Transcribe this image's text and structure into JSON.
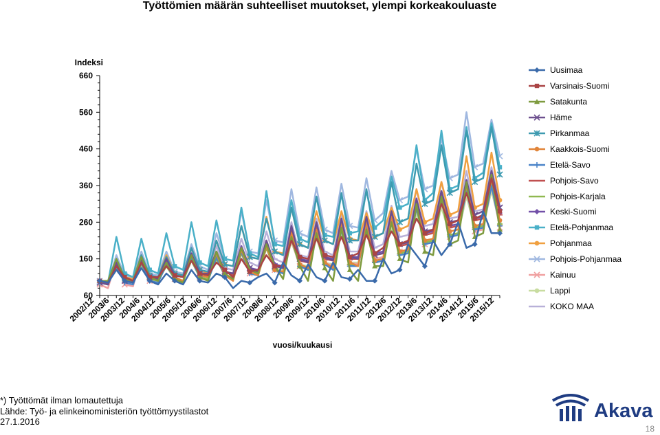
{
  "title": "Työttömien määrän suhteelliset muutokset, ylempi korkeakouluaste",
  "footnote": {
    "line1": "*) Työttömät ilman lomautettuja",
    "line2": "Lähde: Työ- ja elinkeinoministeriön työttömyystilastot",
    "date": "27.1.2016"
  },
  "logo": {
    "text": "Akava"
  },
  "page_number": "18",
  "chart_data": {
    "type": "line",
    "title": "Työttömien määrän suhteelliset muutokset, ylempi korkeakouluaste",
    "ylabel": "Indeksi",
    "xlabel": "vuosi/kuukausi",
    "ylim": [
      60,
      660
    ],
    "yticks": [
      60,
      160,
      260,
      360,
      460,
      560,
      660
    ],
    "x_tick_labels": [
      "2002/12",
      "2003/6",
      "2003/12",
      "2004/6",
      "2004/12",
      "2005/6",
      "2005/12",
      "2006/6",
      "2006/12",
      "2007/6",
      "2007/12",
      "2008/6",
      "2008/12",
      "2009/6",
      "2009/12",
      "2010/6",
      "2010/12",
      "2011/6",
      "2011/12",
      "2012/6",
      "2012/12",
      "2013/6",
      "2013/12",
      "2014/6",
      "2014/12",
      "2015/6",
      "2015/12"
    ],
    "grid": false,
    "legend_position": "right",
    "series": [
      {
        "name": "Uusimaa",
        "color": "#3a6aaa",
        "marker": "diamond",
        "values": [
          100,
          95,
          130,
          100,
          95,
          135,
          100,
          90,
          120,
          100,
          90,
          130,
          100,
          95,
          120,
          110,
          80,
          100,
          95,
          110,
          120,
          95,
          150,
          115,
          100,
          145,
          110,
          100,
          150,
          110,
          105,
          130,
          100,
          100,
          160,
          120,
          130,
          200,
          170,
          140,
          210,
          170,
          200,
          260,
          190,
          200,
          290,
          230,
          230
        ]
      },
      {
        "name": "Varsinais-Suomi",
        "color": "#aa4445",
        "marker": "square",
        "values": [
          100,
          95,
          140,
          110,
          100,
          150,
          110,
          110,
          140,
          115,
          110,
          155,
          120,
          115,
          150,
          130,
          110,
          160,
          125,
          130,
          170,
          140,
          140,
          210,
          165,
          160,
          215,
          170,
          165,
          220,
          165,
          175,
          225,
          175,
          190,
          235,
          200,
          210,
          270,
          230,
          240,
          310,
          255,
          265,
          340,
          270,
          280,
          380,
          290
        ]
      },
      {
        "name": "Satakunta",
        "color": "#7e9b3f",
        "marker": "triangle",
        "values": [
          100,
          100,
          160,
          105,
          100,
          165,
          110,
          100,
          150,
          105,
          95,
          170,
          110,
          100,
          180,
          120,
          105,
          190,
          130,
          120,
          200,
          140,
          105,
          220,
          140,
          100,
          230,
          135,
          100,
          245,
          130,
          100,
          240,
          140,
          140,
          260,
          160,
          150,
          310,
          180,
          170,
          330,
          200,
          210,
          370,
          220,
          230,
          390,
          240
        ]
      },
      {
        "name": "Häme",
        "color": "#6c4f8e",
        "marker": "x",
        "values": [
          95,
          90,
          150,
          100,
          95,
          160,
          110,
          105,
          160,
          115,
          110,
          175,
          120,
          120,
          180,
          125,
          120,
          190,
          135,
          125,
          210,
          140,
          135,
          250,
          160,
          150,
          260,
          165,
          155,
          270,
          165,
          160,
          275,
          170,
          175,
          290,
          200,
          205,
          320,
          235,
          240,
          345,
          260,
          265,
          375,
          280,
          290,
          400,
          300
        ]
      },
      {
        "name": "Pirkanmaa",
        "color": "#3d9ab0",
        "marker": "star",
        "values": [
          95,
          90,
          160,
          110,
          100,
          170,
          115,
          110,
          165,
          120,
          115,
          190,
          130,
          125,
          210,
          145,
          140,
          250,
          165,
          160,
          270,
          180,
          170,
          300,
          200,
          190,
          330,
          210,
          200,
          340,
          210,
          210,
          350,
          220,
          230,
          370,
          260,
          270,
          420,
          310,
          320,
          470,
          340,
          350,
          510,
          370,
          380,
          520,
          390
        ]
      },
      {
        "name": "Kaakkois-Suomi",
        "color": "#e1853a",
        "marker": "circle",
        "values": [
          100,
          95,
          150,
          105,
          100,
          160,
          110,
          105,
          150,
          110,
          100,
          170,
          115,
          110,
          175,
          115,
          100,
          185,
          125,
          115,
          195,
          130,
          125,
          230,
          145,
          135,
          240,
          150,
          135,
          260,
          150,
          140,
          260,
          155,
          160,
          275,
          180,
          185,
          315,
          210,
          215,
          330,
          235,
          240,
          360,
          250,
          255,
          380,
          265
        ]
      },
      {
        "name": "Etelä-Savo",
        "color": "#4a84c8",
        "marker": "plus",
        "values": [
          100,
          90,
          140,
          95,
          90,
          150,
          100,
          95,
          145,
          105,
          100,
          160,
          110,
          100,
          165,
          115,
          105,
          180,
          120,
          115,
          195,
          130,
          120,
          220,
          140,
          130,
          230,
          145,
          130,
          240,
          140,
          140,
          250,
          150,
          155,
          260,
          170,
          175,
          300,
          200,
          205,
          320,
          220,
          225,
          350,
          240,
          245,
          360,
          250
        ]
      },
      {
        "name": "Pohjois-Savo",
        "color": "#c05050",
        "marker": "dash",
        "values": [
          100,
          95,
          145,
          105,
          100,
          155,
          110,
          105,
          150,
          115,
          110,
          165,
          120,
          115,
          175,
          125,
          115,
          190,
          130,
          125,
          205,
          140,
          135,
          235,
          155,
          150,
          245,
          160,
          155,
          260,
          160,
          160,
          265,
          170,
          175,
          280,
          195,
          200,
          320,
          225,
          230,
          340,
          245,
          250,
          370,
          265,
          270,
          385,
          280
        ]
      },
      {
        "name": "Pohjois-Karjala",
        "color": "#90b850",
        "marker": "dash",
        "values": [
          100,
          95,
          135,
          100,
          95,
          145,
          105,
          100,
          140,
          105,
          100,
          155,
          110,
          105,
          160,
          115,
          105,
          175,
          120,
          115,
          190,
          130,
          120,
          215,
          140,
          130,
          225,
          145,
          135,
          240,
          145,
          140,
          245,
          150,
          155,
          260,
          175,
          180,
          300,
          205,
          210,
          320,
          225,
          230,
          350,
          245,
          250,
          365,
          255
        ]
      },
      {
        "name": "Keski-Suomi",
        "color": "#7250a8",
        "marker": "diamond",
        "values": [
          100,
          95,
          150,
          105,
          100,
          160,
          110,
          105,
          155,
          115,
          110,
          170,
          120,
          115,
          180,
          125,
          120,
          195,
          135,
          130,
          210,
          145,
          140,
          240,
          160,
          155,
          250,
          165,
          160,
          265,
          165,
          165,
          270,
          175,
          180,
          285,
          200,
          205,
          325,
          230,
          235,
          345,
          250,
          255,
          375,
          270,
          275,
          390,
          285
        ]
      },
      {
        "name": "Etelä-Pohjanmaa",
        "color": "#4ab0c8",
        "marker": "square",
        "values": [
          100,
          95,
          220,
          120,
          110,
          215,
          130,
          120,
          230,
          140,
          130,
          260,
          150,
          140,
          265,
          160,
          155,
          300,
          175,
          165,
          345,
          200,
          195,
          320,
          215,
          205,
          330,
          225,
          220,
          335,
          230,
          235,
          345,
          245,
          265,
          385,
          300,
          310,
          470,
          320,
          340,
          510,
          350,
          360,
          520,
          380,
          395,
          530,
          410
        ]
      },
      {
        "name": "Pohjanmaa",
        "color": "#f0a040",
        "marker": "circle",
        "values": [
          100,
          95,
          160,
          110,
          105,
          170,
          115,
          110,
          170,
          120,
          115,
          190,
          130,
          120,
          210,
          145,
          140,
          250,
          165,
          160,
          275,
          180,
          175,
          300,
          200,
          190,
          290,
          210,
          200,
          290,
          215,
          210,
          285,
          220,
          230,
          300,
          240,
          250,
          350,
          260,
          270,
          370,
          280,
          290,
          440,
          300,
          310,
          450,
          320
        ]
      },
      {
        "name": "Pohjois-Pohjanmaa",
        "color": "#a0b8e0",
        "marker": "x",
        "values": [
          100,
          95,
          170,
          115,
          110,
          180,
          120,
          115,
          180,
          125,
          120,
          200,
          140,
          130,
          230,
          160,
          155,
          290,
          180,
          175,
          320,
          210,
          205,
          350,
          230,
          220,
          355,
          240,
          230,
          365,
          250,
          245,
          380,
          265,
          285,
          400,
          320,
          330,
          460,
          350,
          360,
          490,
          380,
          390,
          560,
          410,
          420,
          540,
          440
        ]
      },
      {
        "name": "Kainuu",
        "color": "#f0a0a0",
        "marker": "x",
        "values": [
          90,
          80,
          160,
          90,
          85,
          170,
          100,
          95,
          150,
          105,
          100,
          160,
          110,
          105,
          170,
          115,
          110,
          180,
          120,
          115,
          190,
          130,
          125,
          210,
          140,
          130,
          220,
          150,
          140,
          240,
          150,
          145,
          250,
          160,
          165,
          265,
          180,
          185,
          300,
          200,
          205,
          320,
          220,
          225,
          350,
          235,
          240,
          360,
          245
        ]
      },
      {
        "name": "Lappi",
        "color": "#c8dca0",
        "marker": "circle",
        "values": [
          95,
          90,
          150,
          110,
          105,
          160,
          115,
          110,
          155,
          120,
          115,
          165,
          120,
          115,
          170,
          125,
          120,
          180,
          130,
          125,
          190,
          135,
          130,
          205,
          145,
          140,
          215,
          150,
          145,
          225,
          150,
          150,
          230,
          160,
          165,
          245,
          180,
          185,
          285,
          205,
          210,
          300,
          225,
          230,
          330,
          245,
          250,
          345,
          255
        ]
      },
      {
        "name": "KOKO MAA",
        "color": "#b8b0d8",
        "marker": "dash",
        "values": [
          100,
          95,
          155,
          110,
          105,
          165,
          115,
          110,
          160,
          120,
          115,
          180,
          125,
          120,
          195,
          135,
          130,
          215,
          150,
          140,
          235,
          160,
          150,
          260,
          170,
          165,
          270,
          180,
          170,
          280,
          180,
          180,
          290,
          190,
          200,
          305,
          220,
          225,
          350,
          250,
          255,
          370,
          270,
          275,
          400,
          290,
          295,
          410,
          305
        ]
      }
    ]
  }
}
